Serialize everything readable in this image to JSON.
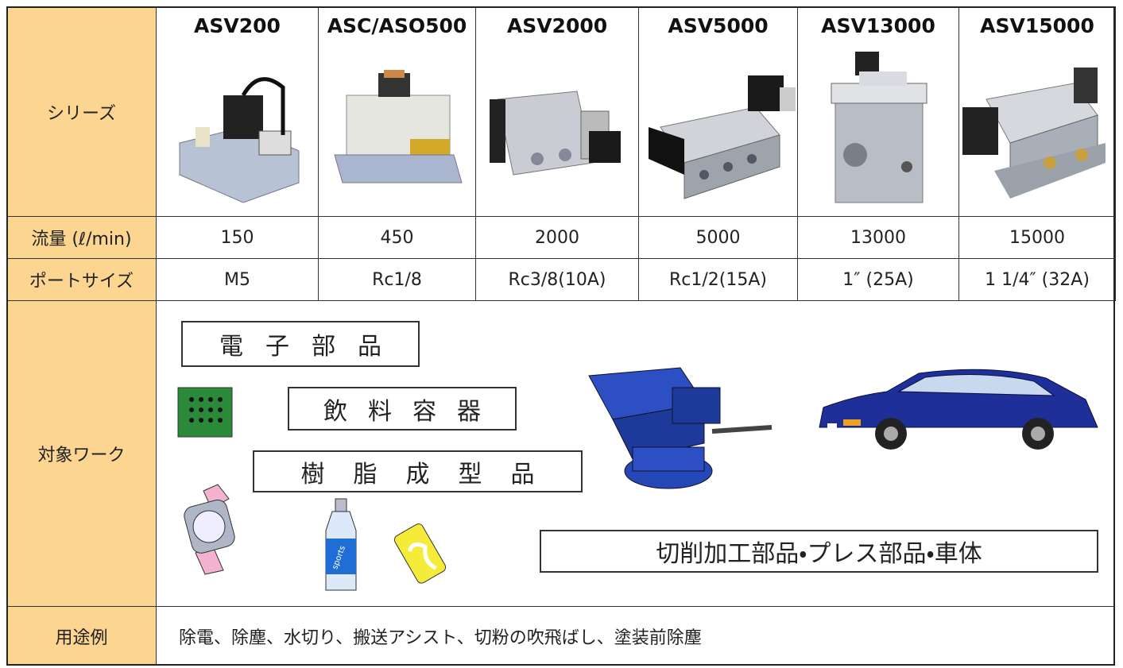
{
  "table": {
    "series_label": "シリーズ",
    "models": [
      "ASV200",
      "ASC/ASO500",
      "ASV2000",
      "ASV5000",
      "ASV13000",
      "ASV15000"
    ],
    "flow": {
      "label": "流量 (ℓ/min)",
      "values": [
        150,
        450,
        2000,
        5000,
        13000,
        15000
      ]
    },
    "port": {
      "label": "ポートサイズ",
      "values": [
        "M5",
        "Rc1/8",
        "Rc3/8(10A)",
        "Rc1/2(15A)",
        "1″ (25A)",
        "1 1/4″ (32A)"
      ]
    },
    "work": {
      "label": "対象ワーク",
      "categories": [
        "電子部品",
        "飲料容器",
        "樹脂成型品",
        "切削加工部品・プレス部品・車体"
      ],
      "bottle_label": "sports"
    },
    "usage": {
      "label": "用途例",
      "text": "除電、除塵、水切り、搬送アシスト、切粉の吹飛ばし、塗装前除塵"
    }
  }
}
